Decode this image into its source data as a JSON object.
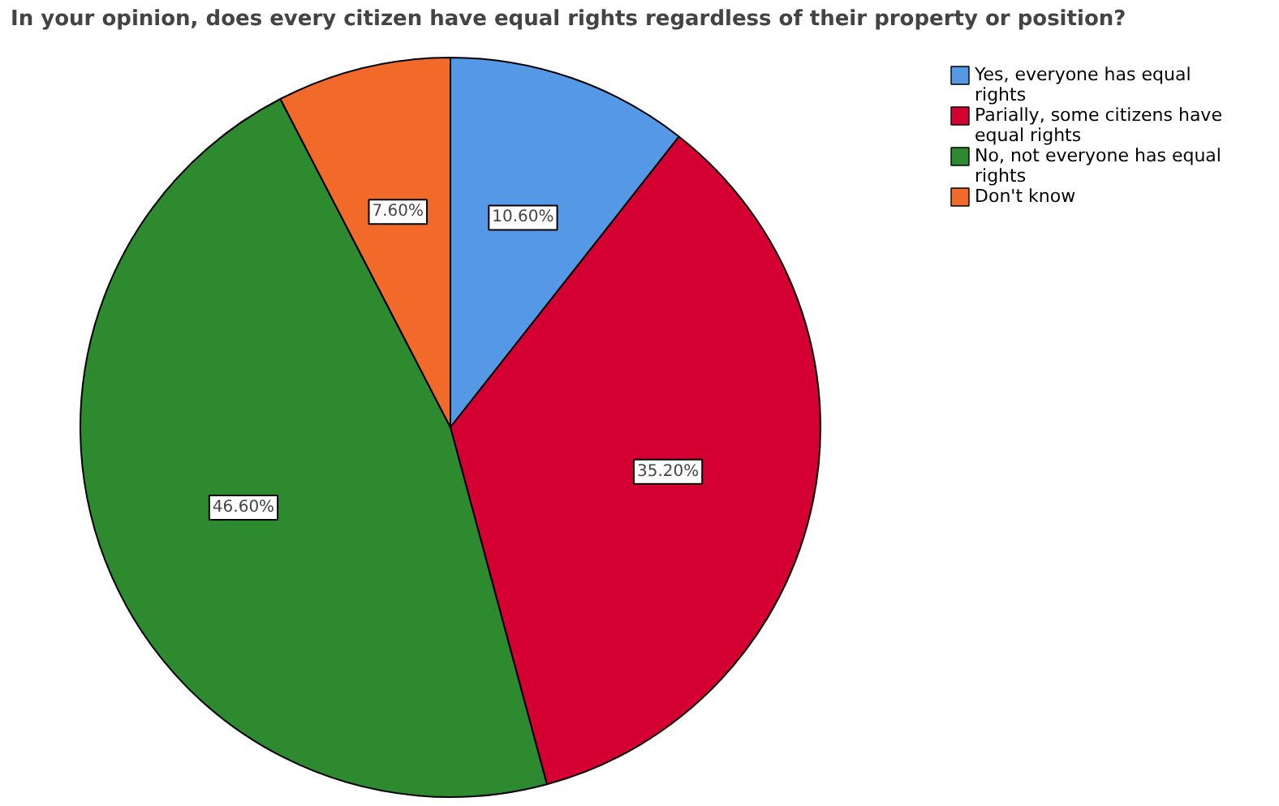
{
  "chart_data": {
    "type": "pie",
    "title": "In your opinion, does every citizen have equal rights regardless of their property or position?",
    "categories": [
      "Yes, everyone has equal rights",
      "Parially, some citizens have equal rights",
      "No, not everyone has equal rights",
      "Don't know"
    ],
    "values": [
      10.6,
      35.2,
      46.6,
      7.6
    ],
    "colors": [
      "#5599e6",
      "#d50032",
      "#2e8a2e",
      "#f26a2a"
    ],
    "value_labels": [
      "10.60%",
      "35.20%",
      "46.60%",
      "7.60%"
    ],
    "legend": "top right"
  }
}
